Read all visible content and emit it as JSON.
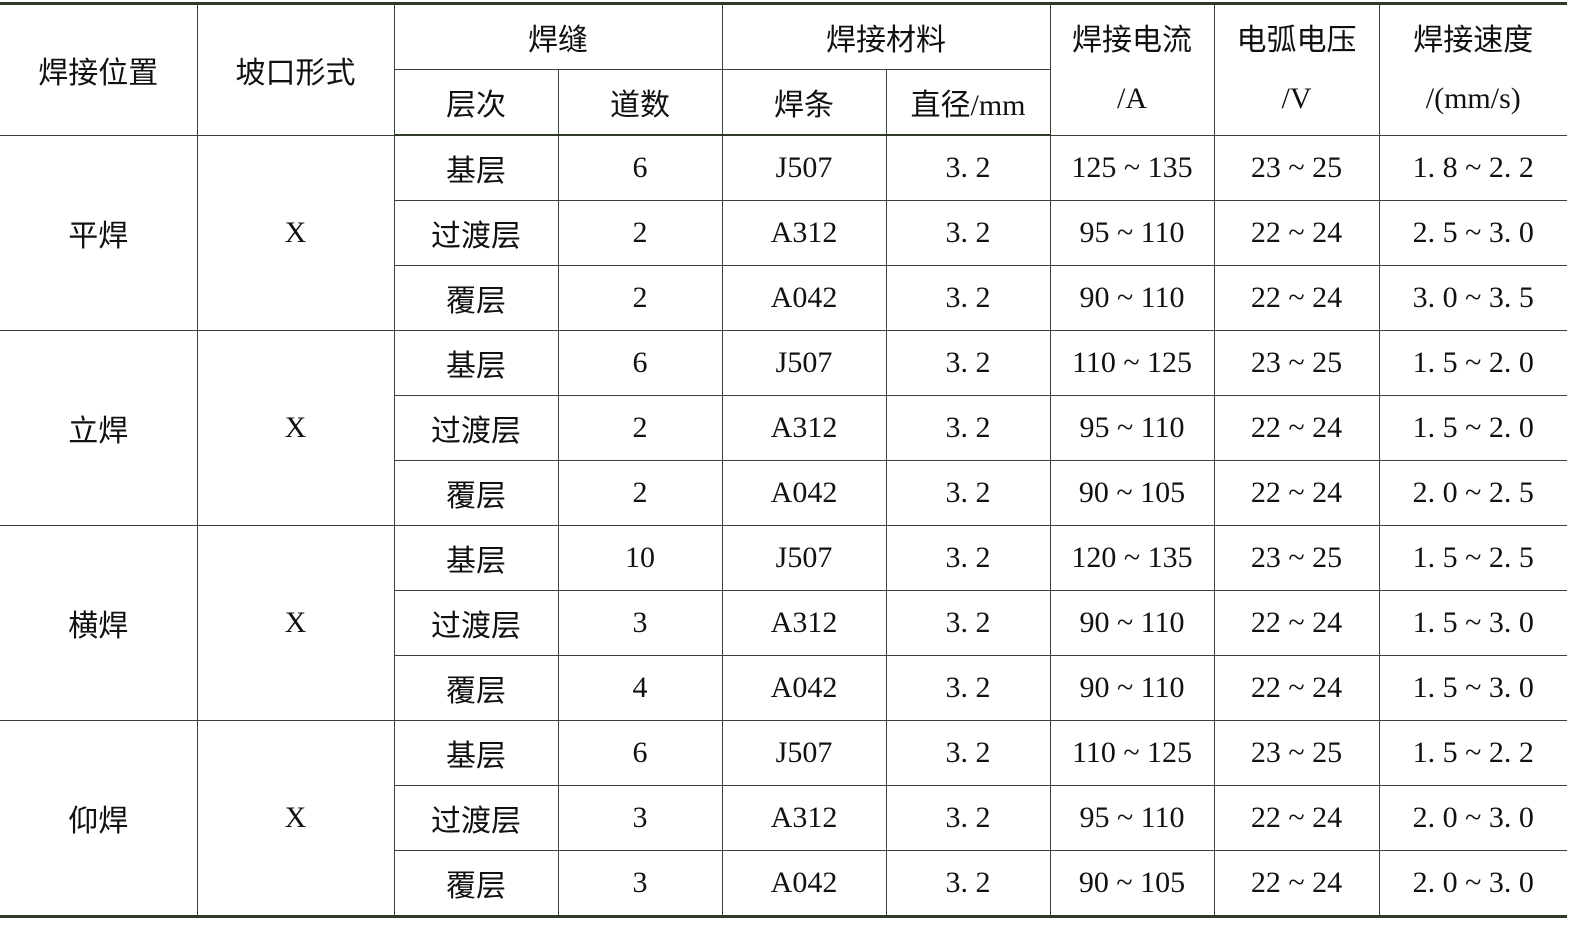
{
  "header": {
    "position": "焊接位置",
    "groove": "坡口形式",
    "weld": "焊缝",
    "layer": "层次",
    "passes": "道数",
    "material": "焊接材料",
    "electrode": "焊条",
    "diameter": "直径/mm",
    "current": "焊接电流",
    "current_unit": "/A",
    "voltage": "电弧电压",
    "voltage_unit": "/V",
    "speed": "焊接速度",
    "speed_unit": "/(mm/s)"
  },
  "groups": [
    {
      "position": "平焊",
      "groove": "X",
      "rows": [
        [
          "基层",
          "6",
          "J507",
          "3. 2",
          "125 ~ 135",
          "23 ~ 25",
          "1. 8 ~ 2. 2"
        ],
        [
          "过渡层",
          "2",
          "A312",
          "3. 2",
          "95 ~ 110",
          "22 ~ 24",
          "2. 5 ~ 3. 0"
        ],
        [
          "覆层",
          "2",
          "A042",
          "3. 2",
          "90 ~ 110",
          "22 ~ 24",
          "3. 0 ~ 3. 5"
        ]
      ]
    },
    {
      "position": "立焊",
      "groove": "X",
      "rows": [
        [
          "基层",
          "6",
          "J507",
          "3. 2",
          "110 ~ 125",
          "23 ~ 25",
          "1. 5 ~ 2. 0"
        ],
        [
          "过渡层",
          "2",
          "A312",
          "3. 2",
          "95 ~ 110",
          "22 ~ 24",
          "1. 5 ~ 2. 0"
        ],
        [
          "覆层",
          "2",
          "A042",
          "3. 2",
          "90 ~ 105",
          "22 ~ 24",
          "2. 0 ~ 2. 5"
        ]
      ]
    },
    {
      "position": "横焊",
      "groove": "X",
      "rows": [
        [
          "基层",
          "10",
          "J507",
          "3. 2",
          "120 ~ 135",
          "23 ~ 25",
          "1. 5 ~ 2. 5"
        ],
        [
          "过渡层",
          "3",
          "A312",
          "3. 2",
          "90 ~ 110",
          "22 ~ 24",
          "1. 5 ~ 3. 0"
        ],
        [
          "覆层",
          "4",
          "A042",
          "3. 2",
          "90 ~ 110",
          "22 ~ 24",
          "1. 5 ~ 3. 0"
        ]
      ]
    },
    {
      "position": "仰焊",
      "groove": "X",
      "rows": [
        [
          "基层",
          "6",
          "J507",
          "3. 2",
          "110 ~ 125",
          "23 ~ 25",
          "1. 5 ~ 2. 2"
        ],
        [
          "过渡层",
          "3",
          "A312",
          "3. 2",
          "95 ~ 110",
          "22 ~ 24",
          "2. 0 ~ 3. 0"
        ],
        [
          "覆层",
          "3",
          "A042",
          "3. 2",
          "90 ~ 105",
          "22 ~ 24",
          "2. 0 ~ 3. 0"
        ]
      ]
    }
  ]
}
